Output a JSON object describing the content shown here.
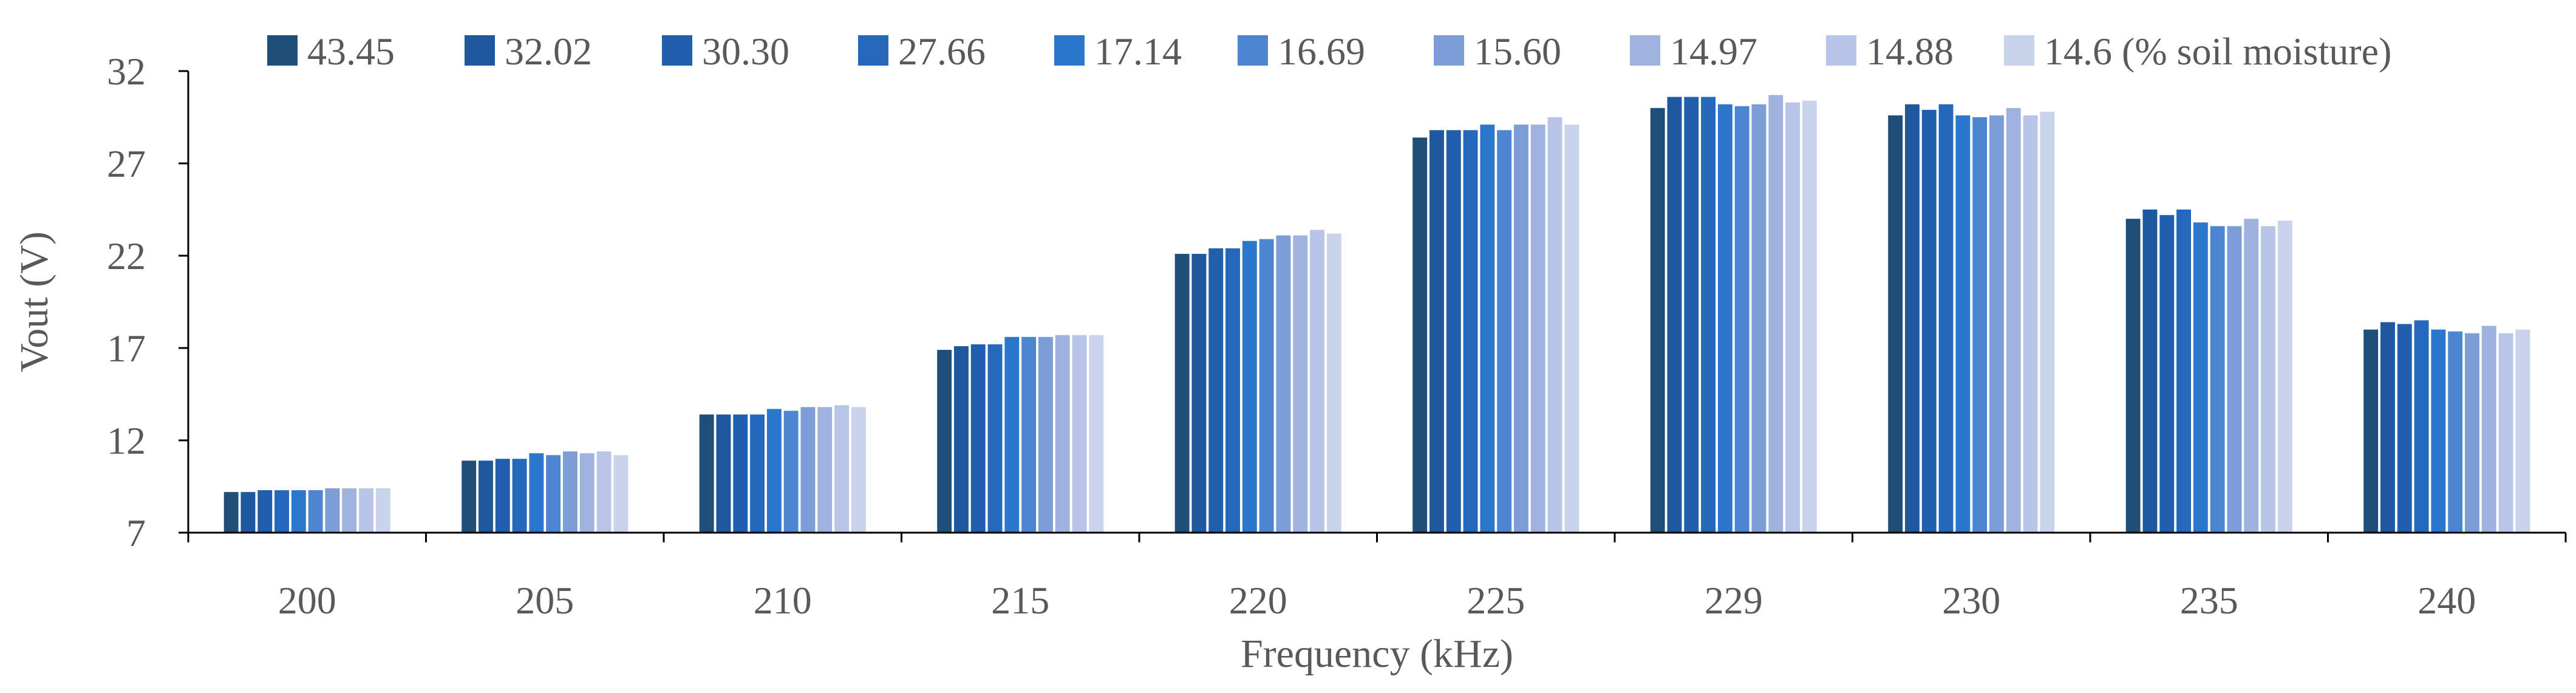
{
  "chart_data": {
    "type": "bar",
    "title": "",
    "xlabel": "Frequency (kHz)",
    "ylabel": "Vout (V)",
    "ylim": [
      7,
      32
    ],
    "yticks": [
      "7",
      "12",
      "17",
      "22",
      "27",
      "32"
    ],
    "grid": false,
    "legend_position": "top",
    "categories": [
      "200",
      "205",
      "210",
      "215",
      "220",
      "225",
      "229",
      "230",
      "235",
      "240"
    ],
    "series": [
      {
        "name": "43.45",
        "color": "#1F4E79",
        "values": [
          9.2,
          10.9,
          13.4,
          16.9,
          22.1,
          28.4,
          30.0,
          29.6,
          24.0,
          18.0
        ]
      },
      {
        "name": "32.02",
        "color": "#1E59A0",
        "values": [
          9.2,
          10.9,
          13.4,
          17.1,
          22.1,
          28.8,
          30.6,
          30.2,
          24.5,
          18.4
        ]
      },
      {
        "name": "30.30",
        "color": "#1F5FAE",
        "values": [
          9.3,
          11.0,
          13.4,
          17.2,
          22.4,
          28.8,
          30.6,
          29.9,
          24.2,
          18.3
        ]
      },
      {
        "name": "27.66",
        "color": "#2468BB",
        "values": [
          9.3,
          11.0,
          13.4,
          17.2,
          22.4,
          28.8,
          30.6,
          30.2,
          24.5,
          18.5
        ]
      },
      {
        "name": "17.14",
        "color": "#2A77CB",
        "values": [
          9.3,
          11.3,
          13.7,
          17.6,
          22.8,
          29.1,
          30.2,
          29.6,
          23.8,
          18.0
        ]
      },
      {
        "name": "16.69",
        "color": "#4C86D1",
        "values": [
          9.3,
          11.2,
          13.6,
          17.6,
          22.9,
          28.8,
          30.1,
          29.5,
          23.6,
          17.9
        ]
      },
      {
        "name": "15.60",
        "color": "#7D9DD6",
        "values": [
          9.4,
          11.4,
          13.8,
          17.6,
          23.1,
          29.1,
          30.2,
          29.6,
          23.6,
          17.8
        ]
      },
      {
        "name": "14.97",
        "color": "#9FB1DD",
        "values": [
          9.4,
          11.3,
          13.8,
          17.7,
          23.1,
          29.1,
          30.7,
          30.0,
          24.0,
          18.2
        ]
      },
      {
        "name": "14.88",
        "color": "#B8C5E6",
        "values": [
          9.4,
          11.4,
          13.9,
          17.7,
          23.4,
          29.5,
          30.3,
          29.6,
          23.6,
          17.8
        ]
      },
      {
        "name": "14.6 (% soil moisture)",
        "color": "#CAD3EC",
        "values": [
          9.4,
          11.2,
          13.8,
          17.7,
          23.2,
          29.1,
          30.4,
          29.8,
          23.9,
          18.0
        ]
      }
    ]
  }
}
